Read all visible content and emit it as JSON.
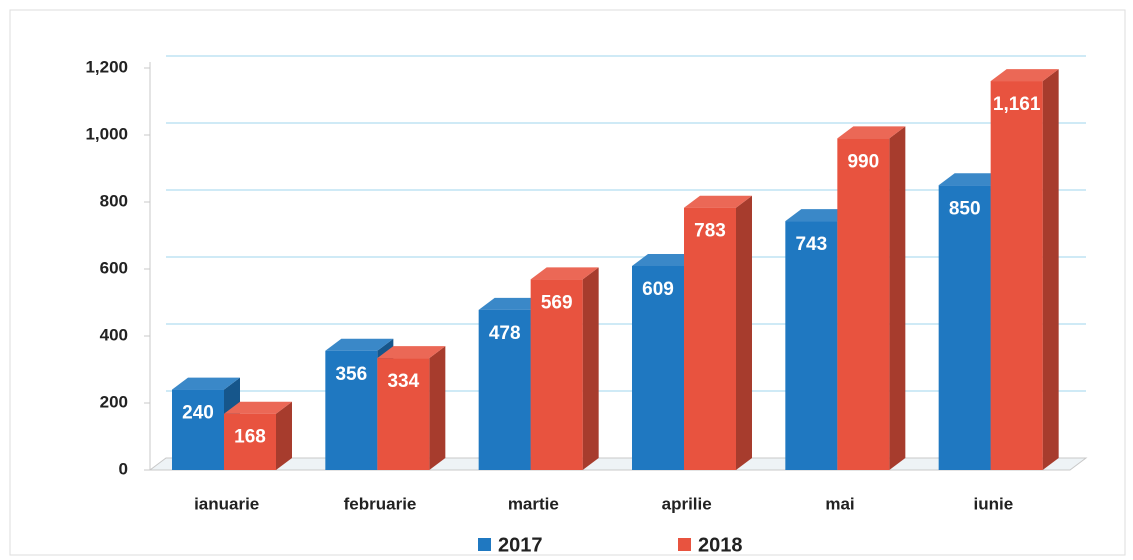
{
  "chart_data": {
    "type": "bar3d",
    "categories": [
      "ianuarie",
      "februarie",
      "martie",
      "aprilie",
      "mai",
      "iunie"
    ],
    "series": [
      {
        "name": "2017",
        "color": "#1f78c1",
        "values": [
          240,
          356,
          478,
          609,
          743,
          850
        ]
      },
      {
        "name": "2018",
        "color": "#e8533f",
        "values": [
          168,
          334,
          569,
          783,
          990,
          1161
        ],
        "value_labels": [
          "168",
          "334",
          "569",
          "783",
          "990",
          "1,161"
        ]
      }
    ],
    "ylim": [
      0,
      1200
    ],
    "yticks": [
      0,
      200,
      400,
      600,
      800,
      {
        "value": 1000,
        "label": "1,000"
      },
      {
        "value": 1200,
        "label": "1,200"
      }
    ],
    "grid": true,
    "legend": "bottom"
  }
}
